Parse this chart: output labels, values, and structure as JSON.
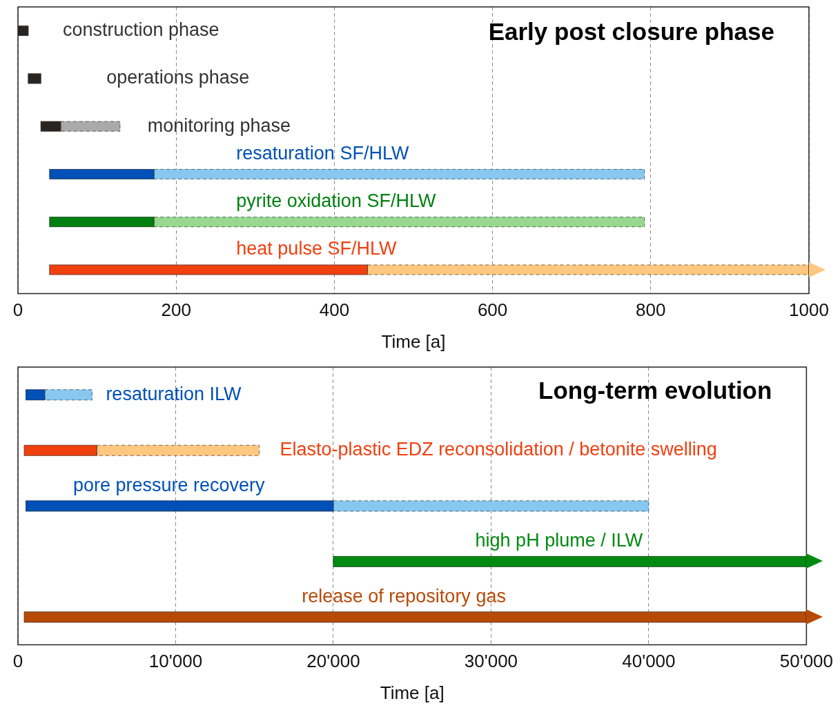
{
  "chart_data": [
    {
      "type": "bar",
      "orientation": "horizontal",
      "title": "Early post closure phase",
      "xlabel": "Time [a]",
      "categories": [
        "construction phase",
        "operations phase",
        "monitoring phase",
        "resaturation SF/HLW",
        "pyrite oxidation SF/HLW",
        "heat pulse SF/HLW"
      ],
      "series": [
        {
          "colors": [
            "#2a2420",
            "#2a2420",
            "#2a2420",
            "#0050b8",
            "#008010",
            "#f04010"
          ],
          "base": [
            0,
            13,
            29,
            40,
            40,
            40
          ],
          "values": [
            13,
            16,
            25,
            132,
            132,
            402
          ]
        },
        {
          "colors": [
            "#aaaaaa",
            "#aaaaaa",
            "#aaaaaa",
            "#88c8f0",
            "#98d890",
            "#ffc880"
          ],
          "base": [
            null,
            null,
            54,
            172,
            172,
            442
          ],
          "values": [
            null,
            null,
            75,
            620,
            620,
            558
          ],
          "line_style": "dashed"
        }
      ],
      "xlim": [
        0,
        1000
      ],
      "xticks": [
        0,
        200,
        400,
        600,
        800,
        1000
      ],
      "grid": "x",
      "legend": false,
      "tick_labels": "x"
    },
    {
      "type": "bar",
      "orientation": "horizontal",
      "title": "Long-term evolution",
      "xlabel": "Time [a]",
      "categories": [
        "resaturation ILW",
        "Elasto-plastic EDZ reconsolidation / betonite swelling",
        "pore pressure recovery",
        "high pH plume / ILW",
        "release of repository gas"
      ],
      "series": [
        {
          "colors": [
            "#0050b8",
            "#f04010",
            "#0050b8",
            "#008a10",
            "#b84a08"
          ],
          "base": [
            500,
            400,
            500,
            20000,
            400
          ],
          "values": [
            1200,
            4600,
            19500,
            30000,
            49600
          ]
        },
        {
          "colors": [
            "#88c8f0",
            "#ffc880",
            "#88c8f0",
            "#008a10",
            "#b84a08"
          ],
          "base": [
            1700,
            5000,
            20000,
            null,
            null
          ],
          "values": [
            3000,
            10300,
            20000,
            null,
            null
          ],
          "line_style": "dashed"
        }
      ],
      "xlim": [
        0,
        50000
      ],
      "xticks": [
        0,
        {
          "value": 10000,
          "label": "10'000"
        },
        {
          "value": 20000,
          "label": "20'000"
        },
        {
          "value": 30000,
          "label": "30'000"
        },
        {
          "value": 40000,
          "label": "40'000"
        },
        {
          "value": 50000,
          "label": "50'000"
        }
      ],
      "grid": "x",
      "legend": false,
      "tick_labels": "x"
    }
  ]
}
